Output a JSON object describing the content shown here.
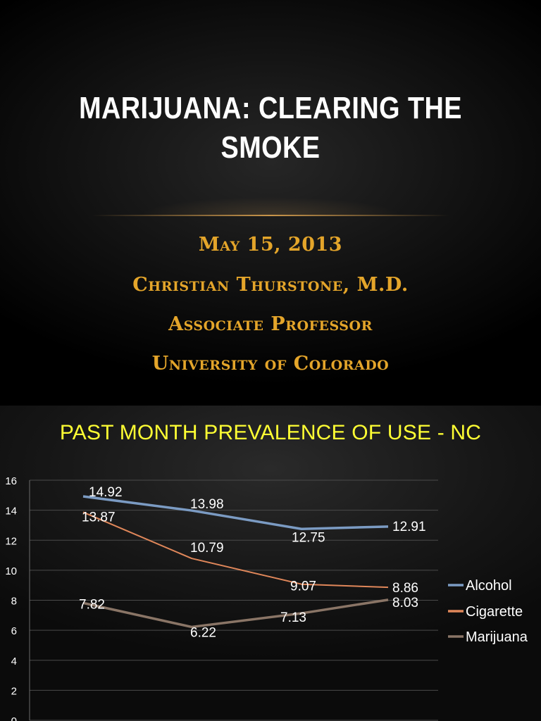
{
  "slide1": {
    "title": "MARIJUANA: CLEARING THE SMOKE",
    "date": "May 15, 2013",
    "presenter": "Christian Thurstone, M.D.",
    "role": "Associate Professor",
    "institution": "University of Colorado"
  },
  "chart_data": {
    "type": "line",
    "title": "PAST MONTH PREVALENCE OF USE - NC",
    "xlabel": "",
    "ylabel": "",
    "categories": [
      "",
      "",
      "",
      ""
    ],
    "ylim": [
      0,
      16
    ],
    "yticks": [
      0,
      2,
      4,
      6,
      8,
      10,
      12,
      14,
      16
    ],
    "grid": true,
    "legend": "right",
    "series": [
      {
        "name": "Alcohol",
        "color": "#7b9bc3",
        "values": [
          14.92,
          13.98,
          12.75,
          12.91
        ]
      },
      {
        "name": "Cigarette",
        "color": "#e0875a",
        "values": [
          13.87,
          10.79,
          9.07,
          8.86
        ]
      },
      {
        "name": "Marijuana",
        "color": "#8a7566",
        "values": [
          7.82,
          6.22,
          7.13,
          8.03
        ]
      }
    ]
  }
}
